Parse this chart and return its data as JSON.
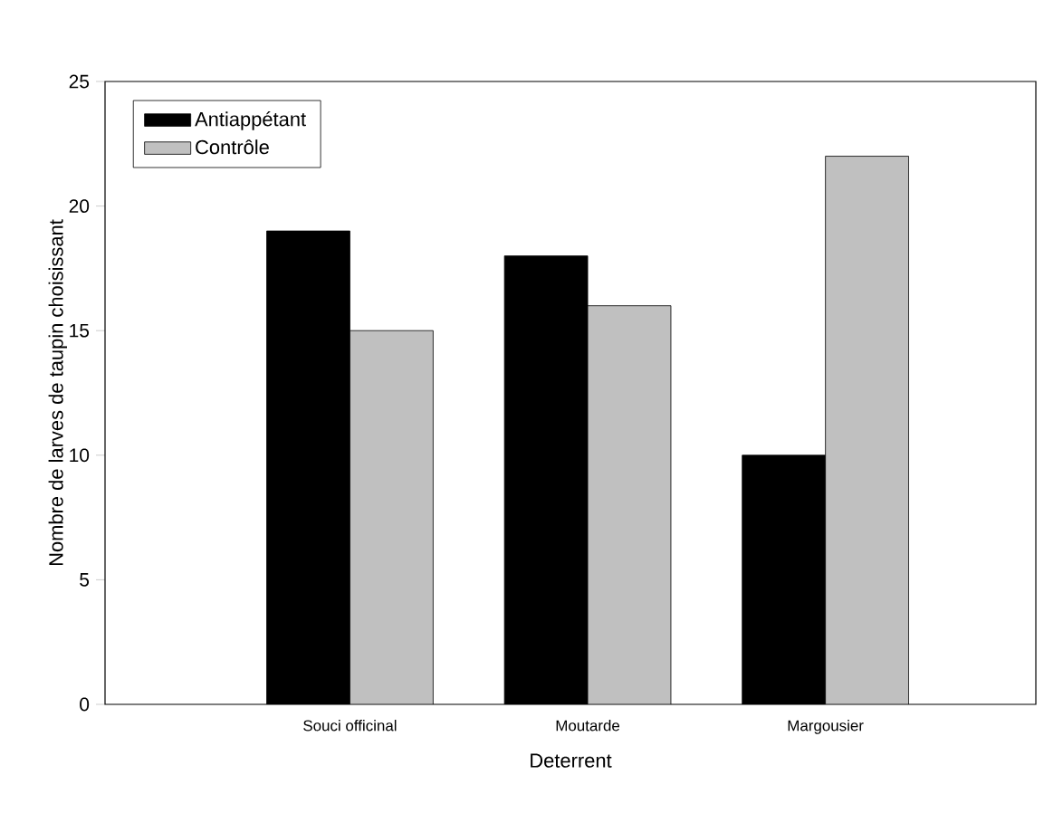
{
  "chart_data": {
    "type": "bar",
    "xlabel": "Deterrent",
    "ylabel": "Nombre de larves de taupin choisissant",
    "categories": [
      "Souci officinal",
      "Moutarde",
      "Margousier"
    ],
    "series": [
      {
        "name": "Antiappétant",
        "color": "#000000",
        "values": [
          19,
          18,
          10
        ]
      },
      {
        "name": "Contrôle",
        "color": "#c0c0c0",
        "values": [
          15,
          16,
          22
        ]
      }
    ],
    "ylim": [
      0,
      25
    ],
    "yticks": [
      0,
      5,
      10,
      15,
      20,
      25
    ],
    "legend": "top left"
  }
}
